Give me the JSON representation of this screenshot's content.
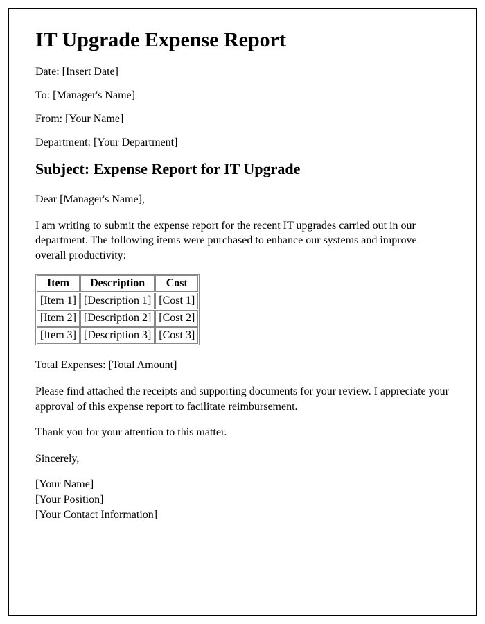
{
  "title": "IT Upgrade Expense Report",
  "meta": {
    "date_label": "Date: ",
    "date_value": "[Insert Date]",
    "to_label": "To: ",
    "to_value": "[Manager's Name]",
    "from_label": "From: ",
    "from_value": "[Your Name]",
    "dept_label": "Department: ",
    "dept_value": "[Your Department]"
  },
  "subject": "Subject: Expense Report for IT Upgrade",
  "salutation": "Dear [Manager's Name],",
  "intro": "I am writing to submit the expense report for the recent IT upgrades carried out in our department. The following items were purchased to enhance our systems and improve overall productivity:",
  "table": {
    "columns": [
      "Item",
      "Description",
      "Cost"
    ],
    "rows": [
      [
        "[Item 1]",
        "[Description 1]",
        "[Cost 1]"
      ],
      [
        "[Item 2]",
        "[Description 2]",
        "[Cost 2]"
      ],
      [
        "[Item 3]",
        "[Description 3]",
        "[Cost 3]"
      ]
    ],
    "border_color": "#888888",
    "header_align": "center",
    "cell_align": "left",
    "font_size": 16
  },
  "total_label": "Total Expenses: ",
  "total_value": "[Total Amount]",
  "body2": "Please find attached the receipts and supporting documents for your review. I appreciate your approval of this expense report to facilitate reimbursement.",
  "body3": "Thank you for your attention to this matter.",
  "closing": "Sincerely,",
  "signature": {
    "name": "[Your Name]",
    "position": "[Your Position]",
    "contact": "[Your Contact Information]"
  },
  "styles": {
    "page_border_color": "#000000",
    "background_color": "#ffffff",
    "text_color": "#000000",
    "h1_fontsize": 30,
    "h2_fontsize": 22,
    "body_fontsize": 16,
    "font_family": "Times New Roman"
  }
}
